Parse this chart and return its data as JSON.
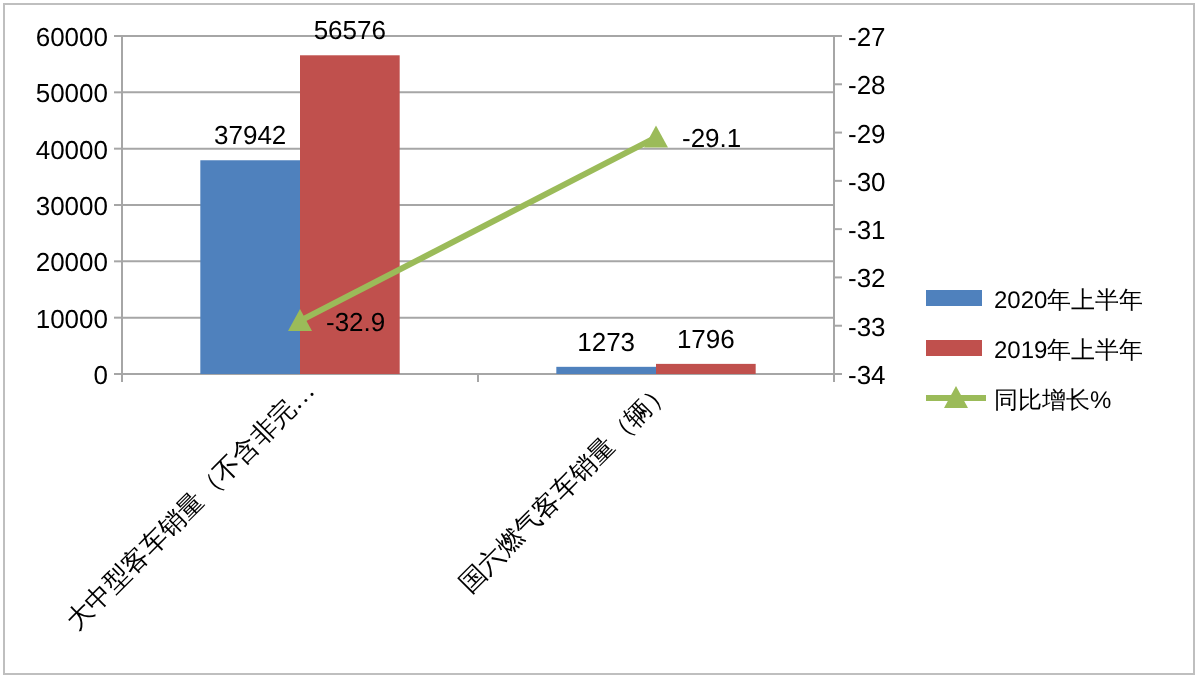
{
  "chart_data": {
    "type": "bar",
    "categories": [
      "大中型客车销量（不含非完…",
      "国六燃气客车销量（辆）"
    ],
    "series": [
      {
        "name": "2020年上半年",
        "color": "#4f81bd",
        "values": [
          37942,
          1273
        ]
      },
      {
        "name": "2019年上半年",
        "color": "#c0504d",
        "values": [
          56576,
          1796
        ]
      },
      {
        "name": "同比增长%",
        "type": "line",
        "axis": "y2",
        "color": "#9bbb59",
        "marker": "triangle",
        "values": [
          -32.9,
          -29.1
        ]
      }
    ],
    "ylim": [
      0,
      60000
    ],
    "yticks": [
      0,
      10000,
      20000,
      30000,
      40000,
      50000,
      60000
    ],
    "y2lim": [
      -34,
      -27
    ],
    "y2ticks": [
      -34,
      -33,
      -32,
      -31,
      -30,
      -29,
      -28,
      -27
    ],
    "grid": "y",
    "legend": "right",
    "data_labels": true
  }
}
